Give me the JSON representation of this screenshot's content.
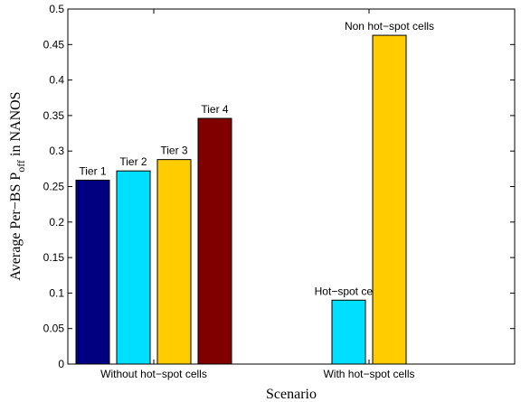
{
  "chart_data": {
    "type": "bar",
    "xlabel": "Scenario",
    "ylabel_main": "Average Per−BS P",
    "ylabel_sub": "off",
    "ylabel_tail": " in NANOS",
    "ylim": [
      0,
      0.5
    ],
    "yticks": [
      0,
      0.05,
      0.1,
      0.15,
      0.2,
      0.25,
      0.3,
      0.35,
      0.4,
      0.45,
      0.5
    ],
    "ytick_labels": [
      "0",
      "0.05",
      "0.1",
      "0.15",
      "0.2",
      "0.25",
      "0.3",
      "0.35",
      "0.4",
      "0.45",
      "0.5"
    ],
    "categories": [
      "Without hot−spot cells",
      "With hot−spot cells"
    ],
    "groups": [
      {
        "category": "Without hot−spot cells",
        "bars": [
          {
            "label": "Tier 1",
            "value": 0.259,
            "color": "#000080"
          },
          {
            "label": "Tier 2",
            "value": 0.272,
            "color": "#00dfff"
          },
          {
            "label": "Tier 3",
            "value": 0.288,
            "color": "#ffcc00"
          },
          {
            "label": "Tier 4",
            "value": 0.346,
            "color": "#800000"
          }
        ]
      },
      {
        "category": "With hot−spot cells",
        "bars": [
          {
            "label": "Hot−spot cells",
            "value": 0.09,
            "color": "#00dfff"
          },
          {
            "label": "Non hot−spot cells",
            "value": 0.463,
            "color": "#ffcc00"
          }
        ]
      }
    ],
    "grid": false,
    "legend": "none"
  }
}
